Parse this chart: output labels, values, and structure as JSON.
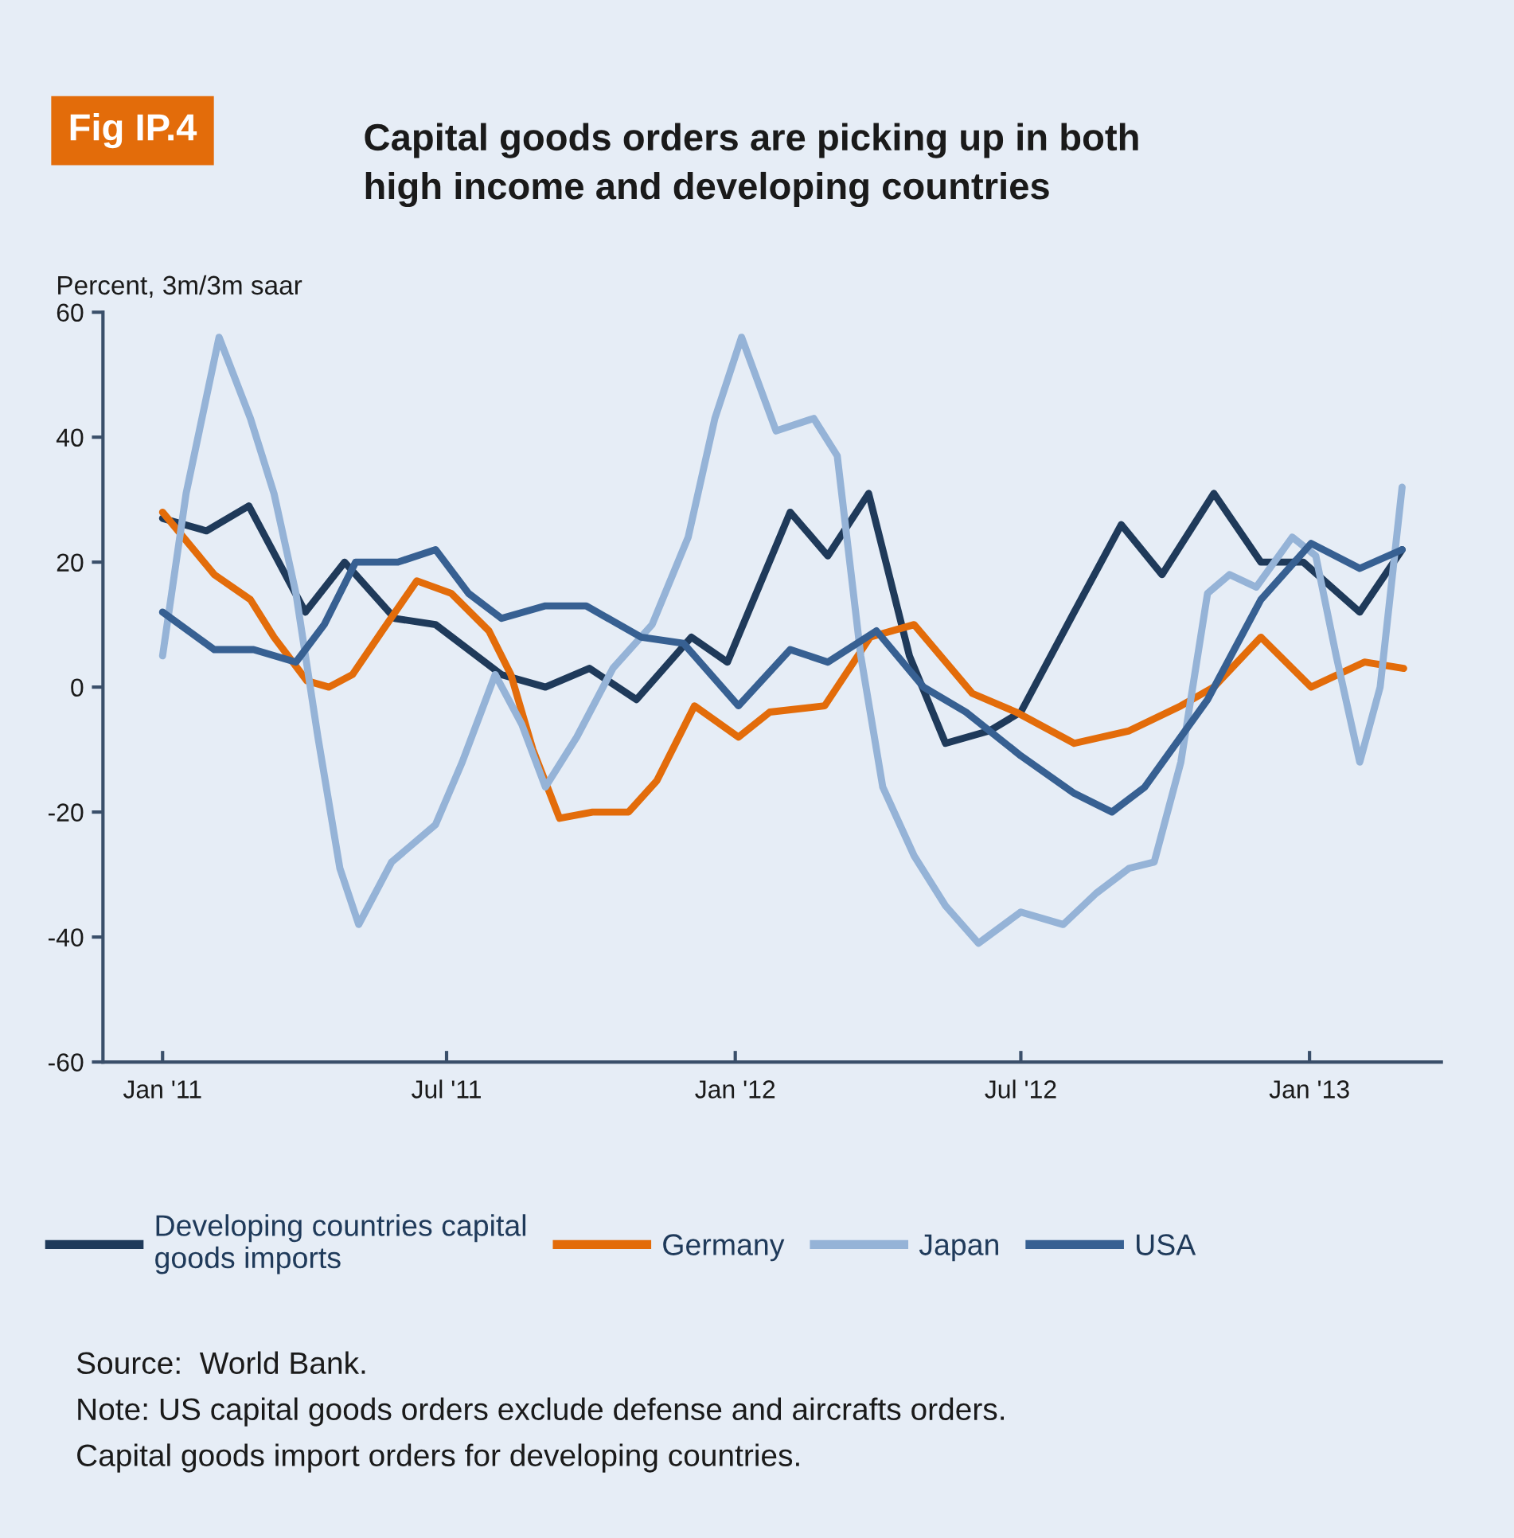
{
  "chart_data": {
    "type": "line",
    "title": "Capital goods orders are picking up in both\nhigh income and developing countries",
    "ylabel": "Percent, 3m/3m saar",
    "annotations": [
      "Fig IP.4",
      "Source:  World Bank.",
      "Note: US capital goods orders exclude defense and aircrafts orders.",
      "Capital goods import orders for developing countries."
    ],
    "xlim": [
      "2010-11-24",
      "2013-03-26"
    ],
    "xticks": [
      {
        "value": "2011-01-01",
        "label": "Jan '11"
      },
      {
        "value": "2011-07-01",
        "label": "Jul '11"
      },
      {
        "value": "2012-01-01",
        "label": "Jan '12"
      },
      {
        "value": "2012-07-01",
        "label": "Jul '12"
      },
      {
        "value": "2013-01-01",
        "label": "Jan '13"
      }
    ],
    "ylim": [
      -60,
      60
    ],
    "yticks": [
      -60,
      -40,
      -20,
      0,
      20,
      40,
      60
    ],
    "grid": false,
    "legend": "bottom",
    "series": [
      {
        "name": "Developing countries capital\ngoods imports",
        "color": "#1f3a5a",
        "x": [
          "2011-01-01",
          "2011-01-29",
          "2011-02-25",
          "2011-04-02",
          "2011-04-27",
          "2011-05-29",
          "2011-06-24",
          "2011-08-05",
          "2011-09-02",
          "2011-09-30",
          "2011-10-30",
          "2011-12-04",
          "2011-12-27",
          "2012-02-05",
          "2012-02-29",
          "2012-03-26",
          "2012-04-21",
          "2012-05-14",
          "2012-06-11",
          "2012-07-01",
          "2012-08-04",
          "2012-09-03",
          "2012-09-29",
          "2012-11-01",
          "2012-12-01",
          "2012-12-28",
          "2013-02-02",
          "2013-03-01"
        ],
        "values": [
          27,
          25,
          29,
          12,
          20,
          11,
          10,
          2,
          0,
          3,
          -2,
          8,
          4,
          28,
          21,
          31,
          5,
          -9,
          -7,
          -4,
          12,
          26,
          18,
          31,
          20,
          20,
          12,
          22
        ]
      },
      {
        "name": "Germany",
        "color": "#e36c0a",
        "x": [
          "2011-01-01",
          "2011-02-03",
          "2011-02-26",
          "2011-03-13",
          "2011-04-03",
          "2011-04-17",
          "2011-05-02",
          "2011-05-21",
          "2011-06-12",
          "2011-07-04",
          "2011-07-28",
          "2011-08-11",
          "2011-08-25",
          "2011-09-11",
          "2011-10-02",
          "2011-10-25",
          "2011-11-12",
          "2011-12-06",
          "2012-01-03",
          "2012-01-23",
          "2012-02-27",
          "2012-03-27",
          "2012-04-24",
          "2012-05-31",
          "2012-06-28",
          "2012-08-04",
          "2012-09-08",
          "2012-10-11",
          "2012-11-01",
          "2012-12-01",
          "2013-01-02",
          "2013-02-05",
          "2013-03-02"
        ],
        "values": [
          28,
          18,
          14,
          8,
          1,
          0,
          2,
          9,
          17,
          15,
          9,
          2,
          -10,
          -21,
          -20,
          -20,
          -15,
          -3,
          -8,
          -4,
          -3,
          8,
          10,
          -1,
          -4,
          -9,
          -7,
          -3,
          0,
          8,
          0,
          4,
          3
        ]
      },
      {
        "name": "Japan",
        "color": "#95b3d7",
        "x": [
          "2011-01-01",
          "2011-01-16",
          "2011-02-06",
          "2011-02-26",
          "2011-03-13",
          "2011-03-27",
          "2011-04-10",
          "2011-04-24",
          "2011-05-06",
          "2011-05-27",
          "2011-06-24",
          "2011-07-11",
          "2011-08-01",
          "2011-08-18",
          "2011-09-02",
          "2011-09-22",
          "2011-10-15",
          "2011-11-09",
          "2011-12-02",
          "2011-12-19",
          "2012-01-05",
          "2012-01-27",
          "2012-02-20",
          "2012-03-06",
          "2012-03-21",
          "2012-04-04",
          "2012-04-24",
          "2012-05-14",
          "2012-06-04",
          "2012-07-01",
          "2012-07-28",
          "2012-08-18",
          "2012-09-08",
          "2012-09-24",
          "2012-10-11",
          "2012-10-28",
          "2012-11-11",
          "2012-11-28",
          "2012-12-21",
          "2013-01-05",
          "2013-01-18",
          "2013-02-02",
          "2013-02-15",
          "2013-03-01"
        ],
        "values": [
          5,
          31,
          56,
          43,
          31,
          15,
          -8,
          -29,
          -38,
          -28,
          -22,
          -12,
          2,
          -6,
          -16,
          -8,
          3,
          10,
          24,
          43,
          56,
          41,
          43,
          37,
          5,
          -16,
          -27,
          -35,
          -41,
          -36,
          -38,
          -33,
          -29,
          -28,
          -12,
          15,
          18,
          16,
          24,
          21,
          5,
          -12,
          0,
          32
        ]
      },
      {
        "name": "USA",
        "color": "#376092",
        "x": [
          "2011-01-01",
          "2011-02-03",
          "2011-02-28",
          "2011-03-27",
          "2011-04-14",
          "2011-05-04",
          "2011-05-31",
          "2011-06-24",
          "2011-07-15",
          "2011-08-05",
          "2011-09-02",
          "2011-09-28",
          "2011-11-02",
          "2011-11-29",
          "2012-01-03",
          "2012-02-05",
          "2012-02-29",
          "2012-03-31",
          "2012-04-30",
          "2012-05-27",
          "2012-07-01",
          "2012-08-04",
          "2012-08-28",
          "2012-09-18",
          "2012-10-28",
          "2012-12-01",
          "2013-01-02",
          "2013-02-02",
          "2013-03-01"
        ],
        "values": [
          12,
          6,
          6,
          4,
          10,
          20,
          20,
          22,
          15,
          11,
          13,
          13,
          8,
          7,
          -3,
          6,
          4,
          9,
          0,
          -4,
          -11,
          -17,
          -20,
          -16,
          -2,
          14,
          23,
          19,
          22
        ]
      }
    ]
  }
}
